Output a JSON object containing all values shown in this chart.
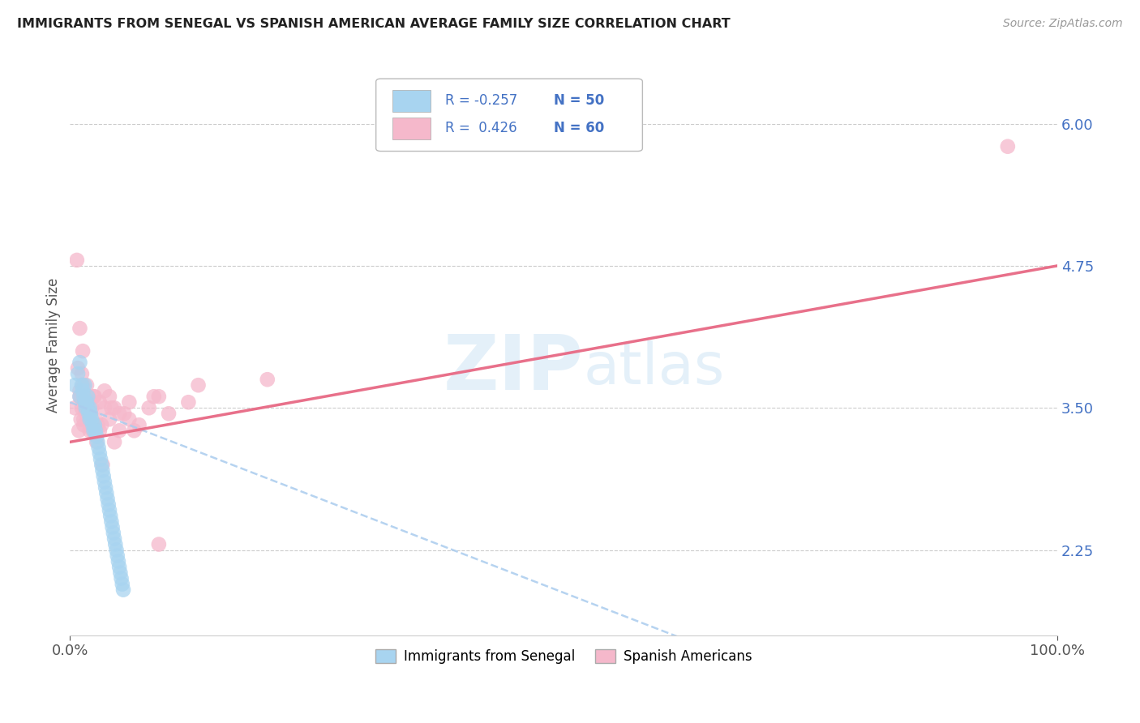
{
  "title": "IMMIGRANTS FROM SENEGAL VS SPANISH AMERICAN AVERAGE FAMILY SIZE CORRELATION CHART",
  "source": "Source: ZipAtlas.com",
  "ylabel": "Average Family Size",
  "xlim": [
    0,
    100
  ],
  "ylim": [
    1.5,
    6.6
  ],
  "yticks": [
    2.25,
    3.5,
    4.75,
    6.0
  ],
  "xticks": [
    0,
    100
  ],
  "xticklabels": [
    "0.0%",
    "100.0%"
  ],
  "legend_r1": "-0.257",
  "legend_n1": "50",
  "legend_r2": "0.426",
  "legend_n2": "60",
  "blue_color": "#a8d4f0",
  "pink_color": "#f5b8cb",
  "blue_line_color": "#aaccee",
  "pink_line_color": "#e8708a",
  "watermark_zip": "ZIP",
  "watermark_atlas": "atlas",
  "blue_points_x": [
    0.5,
    0.8,
    1.0,
    1.0,
    1.2,
    1.3,
    1.4,
    1.5,
    1.5,
    1.6,
    1.7,
    1.8,
    1.8,
    1.9,
    2.0,
    2.0,
    2.1,
    2.2,
    2.3,
    2.4,
    2.5,
    2.6,
    2.7,
    2.8,
    2.9,
    3.0,
    3.1,
    3.2,
    3.3,
    3.4,
    3.5,
    3.6,
    3.7,
    3.8,
    3.9,
    4.0,
    4.1,
    4.2,
    4.3,
    4.4,
    4.5,
    4.6,
    4.7,
    4.8,
    4.9,
    5.0,
    5.1,
    5.2,
    5.3,
    5.4
  ],
  "blue_points_y": [
    3.7,
    3.8,
    3.6,
    3.9,
    3.7,
    3.65,
    3.6,
    3.55,
    3.7,
    3.5,
    3.55,
    3.5,
    3.6,
    3.45,
    3.5,
    3.4,
    3.45,
    3.4,
    3.35,
    3.3,
    3.35,
    3.3,
    3.25,
    3.2,
    3.15,
    3.1,
    3.05,
    3.0,
    2.95,
    2.9,
    2.85,
    2.8,
    2.75,
    2.7,
    2.65,
    2.6,
    2.55,
    2.5,
    2.45,
    2.4,
    2.35,
    2.3,
    2.25,
    2.2,
    2.15,
    2.1,
    2.05,
    2.0,
    1.95,
    1.9
  ],
  "pink_points_x": [
    0.5,
    0.7,
    0.9,
    1.0,
    1.1,
    1.2,
    1.3,
    1.4,
    1.5,
    1.6,
    1.7,
    1.8,
    1.9,
    2.0,
    2.2,
    2.4,
    2.6,
    2.8,
    3.0,
    3.5,
    4.0,
    4.5,
    5.0,
    5.5,
    6.0,
    7.0,
    8.0,
    9.0,
    10.0,
    12.0,
    1.0,
    1.2,
    1.5,
    1.8,
    2.0,
    2.5,
    3.0,
    3.5,
    4.0,
    5.0,
    1.1,
    1.3,
    1.6,
    2.1,
    2.7,
    3.2,
    4.2,
    6.5,
    9.0,
    20.0,
    0.8,
    1.0,
    1.4,
    2.3,
    3.3,
    4.5,
    6.0,
    8.5,
    13.0,
    95.0
  ],
  "pink_points_y": [
    3.5,
    4.8,
    3.3,
    3.6,
    3.4,
    3.5,
    4.0,
    3.35,
    3.55,
    3.45,
    3.7,
    3.5,
    3.6,
    3.3,
    3.5,
    3.6,
    3.4,
    3.35,
    3.55,
    3.65,
    3.4,
    3.5,
    3.3,
    3.45,
    3.55,
    3.35,
    3.5,
    3.6,
    3.45,
    3.55,
    4.2,
    3.8,
    3.5,
    3.55,
    3.4,
    3.6,
    3.3,
    3.5,
    3.6,
    3.45,
    3.6,
    3.7,
    3.55,
    3.45,
    3.2,
    3.35,
    3.5,
    3.3,
    2.3,
    3.75,
    3.85,
    3.65,
    3.4,
    3.3,
    3.0,
    3.2,
    3.4,
    3.6,
    3.7,
    5.8
  ]
}
